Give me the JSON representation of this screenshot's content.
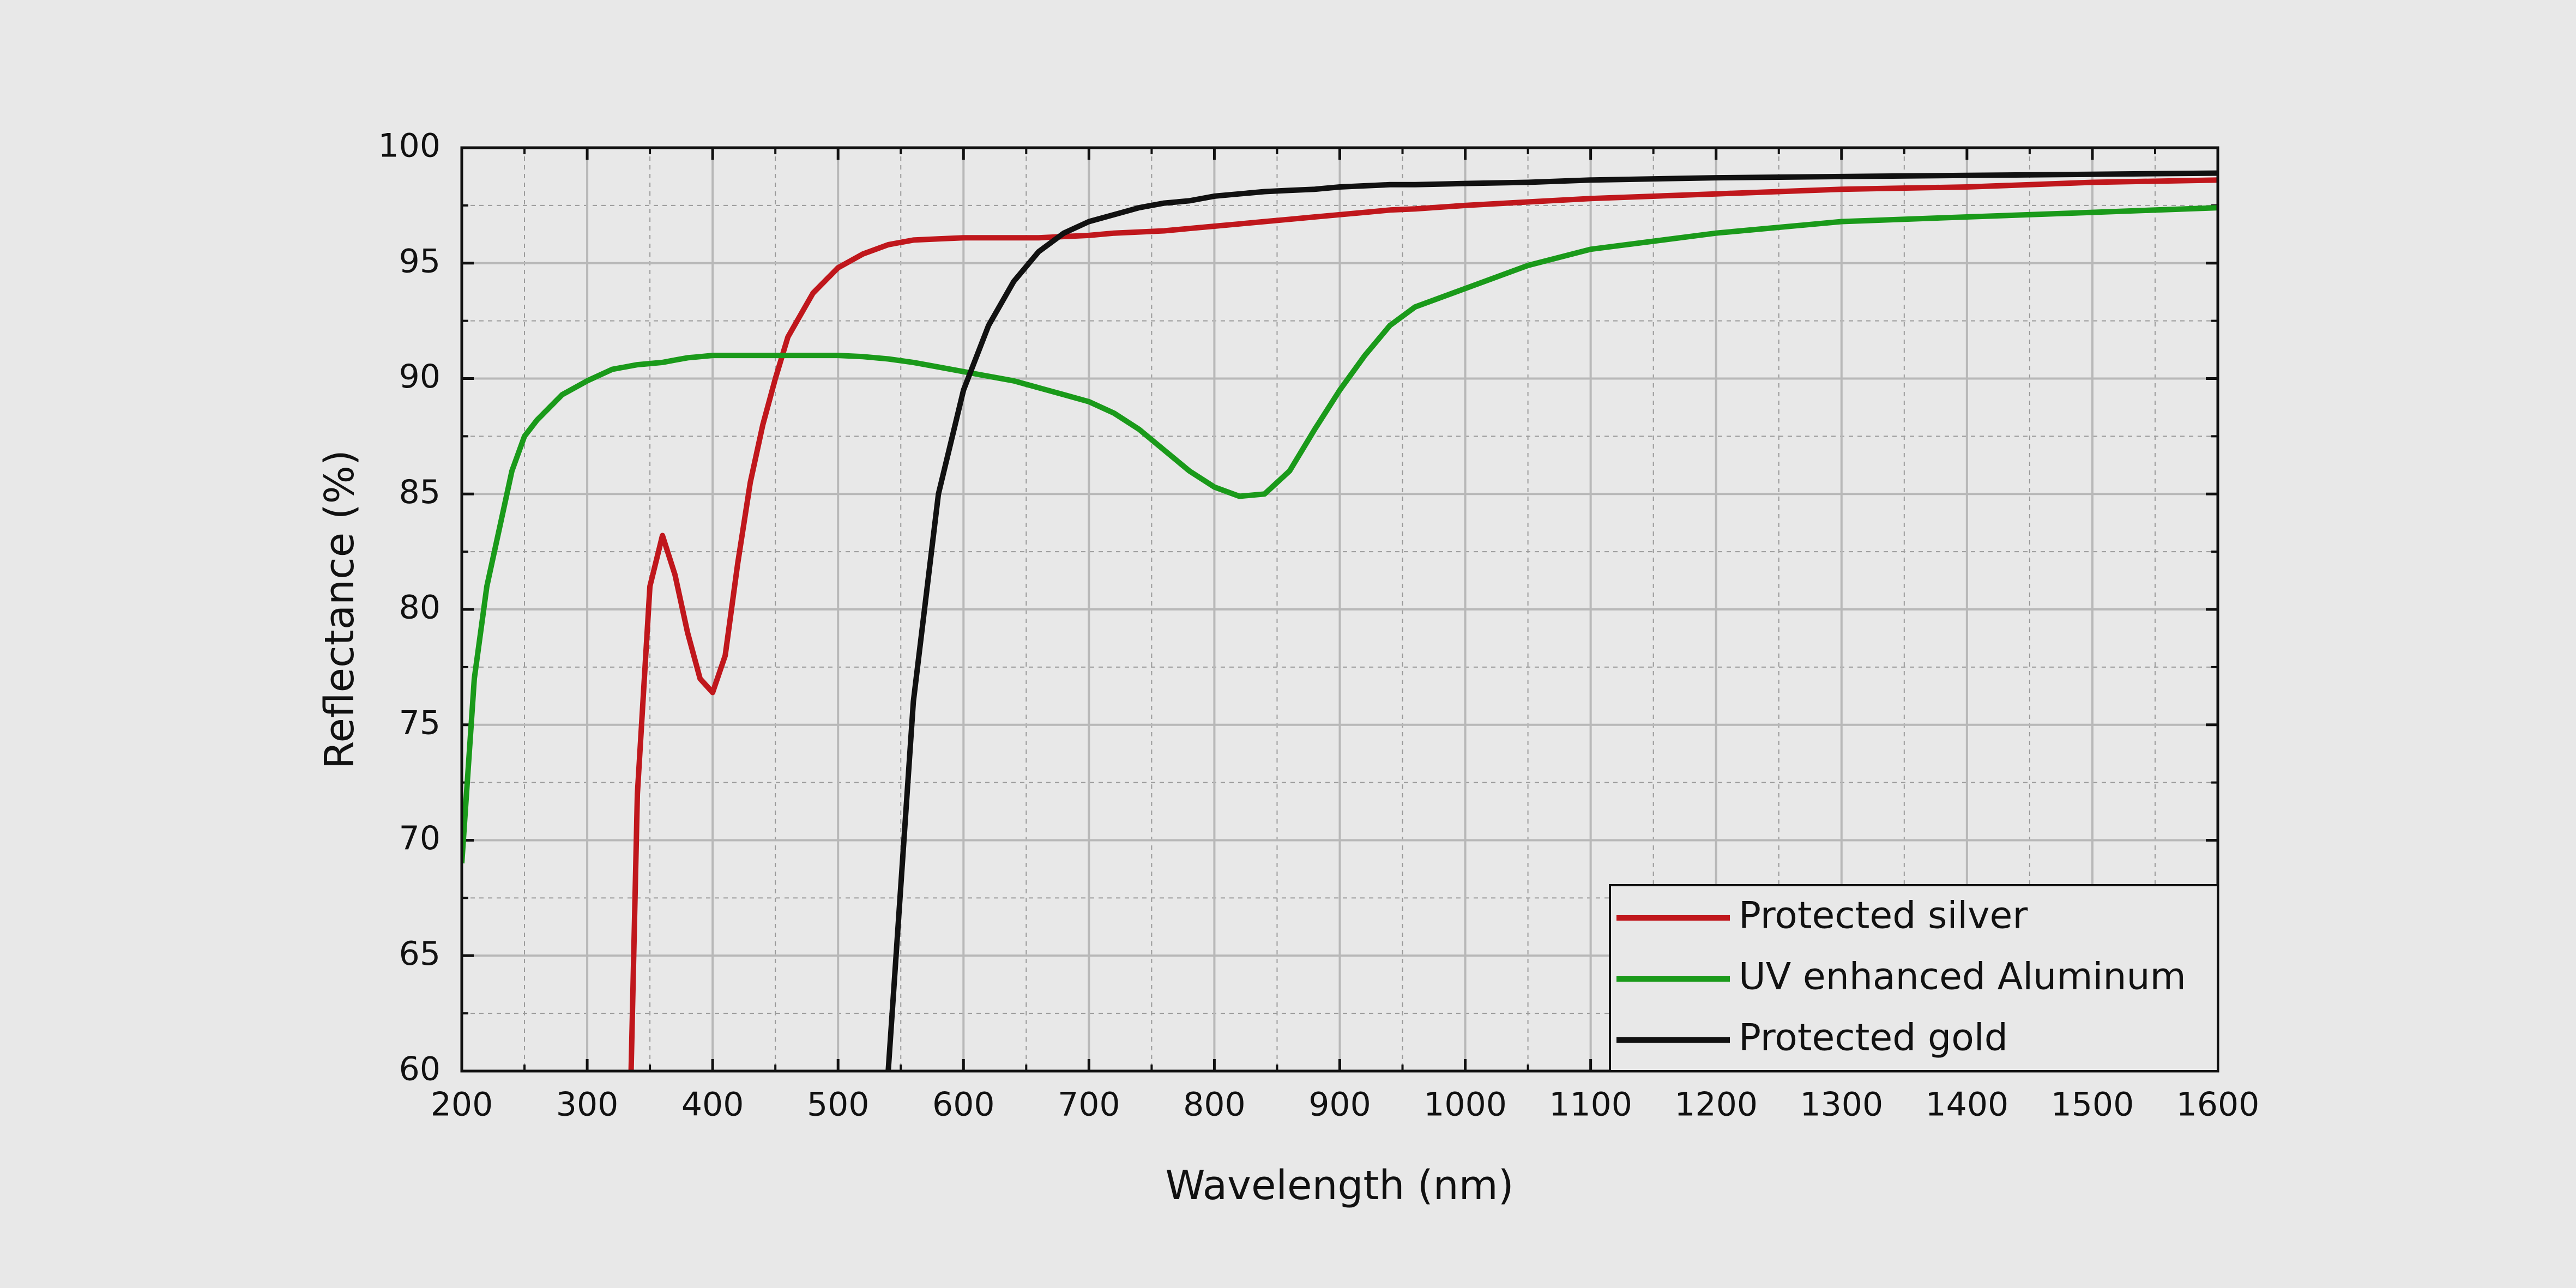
{
  "chart_data": {
    "type": "line",
    "x_label": "Wavelength (nm)",
    "y_label": "Reflectance (%)",
    "x": [
      200,
      210,
      220,
      230,
      240,
      250,
      260,
      280,
      300,
      320,
      335,
      340,
      350,
      360,
      370,
      380,
      390,
      400,
      410,
      420,
      430,
      440,
      450,
      460,
      480,
      500,
      520,
      540,
      560,
      580,
      600,
      620,
      640,
      660,
      680,
      700,
      720,
      740,
      760,
      780,
      800,
      820,
      840,
      860,
      880,
      900,
      920,
      940,
      960,
      1000,
      1050,
      1100,
      1200,
      1300,
      1400,
      1500,
      1600
    ],
    "series": [
      {
        "name": "Protected silver",
        "color": "#c0171c",
        "values": [
          null,
          null,
          null,
          null,
          null,
          null,
          null,
          null,
          null,
          null,
          60,
          72,
          81,
          83.2,
          81.5,
          79,
          77,
          76.4,
          78,
          82,
          85.5,
          88,
          90,
          91.8,
          93.7,
          94.8,
          95.4,
          95.8,
          96,
          96.05,
          96.1,
          96.1,
          96.1,
          96.1,
          96.15,
          96.2,
          96.3,
          96.35,
          96.4,
          96.5,
          96.6,
          96.7,
          96.8,
          96.9,
          97,
          97.1,
          97.2,
          97.3,
          97.35,
          97.5,
          97.65,
          97.8,
          98,
          98.2,
          98.3,
          98.5,
          98.6
        ]
      },
      {
        "name": "UV enhanced Aluminum",
        "color": "#1a9a1a",
        "values": [
          69,
          77,
          81,
          83.5,
          86,
          87.5,
          88.2,
          89.3,
          89.9,
          90.4,
          90.55,
          90.6,
          90.65,
          90.7,
          90.8,
          90.9,
          90.95,
          91,
          91,
          91,
          91,
          91,
          91,
          91,
          91,
          91,
          90.95,
          90.85,
          90.7,
          90.5,
          90.3,
          90.1,
          89.9,
          89.6,
          89.3,
          89,
          88.5,
          87.8,
          86.9,
          86,
          85.3,
          84.9,
          85,
          86,
          87.8,
          89.5,
          91,
          92.3,
          93.1,
          93.9,
          94.9,
          95.6,
          96.3,
          96.8,
          97,
          97.2,
          97.4
        ]
      },
      {
        "name": "Protected gold",
        "color": "#111111",
        "values": [
          null,
          null,
          null,
          null,
          null,
          null,
          null,
          null,
          null,
          null,
          null,
          null,
          null,
          null,
          null,
          null,
          null,
          null,
          null,
          null,
          null,
          null,
          null,
          null,
          null,
          null,
          null,
          60,
          76,
          85,
          89.5,
          92.3,
          94.2,
          95.5,
          96.3,
          96.8,
          97.1,
          97.4,
          97.6,
          97.7,
          97.9,
          98,
          98.1,
          98.15,
          98.2,
          98.3,
          98.35,
          98.4,
          98.4,
          98.45,
          98.5,
          98.6,
          98.7,
          98.75,
          98.8,
          98.85,
          98.9
        ]
      }
    ],
    "xlim": [
      200,
      1600
    ],
    "xticks": [
      200,
      300,
      400,
      500,
      600,
      700,
      800,
      900,
      1000,
      1100,
      1200,
      1300,
      1400,
      1500,
      1600
    ],
    "ylim": [
      60,
      100
    ],
    "yticks": [
      60,
      65,
      70,
      75,
      80,
      85,
      90,
      95,
      100
    ],
    "grid": true,
    "minor_grid": true,
    "legend": "lower right"
  }
}
